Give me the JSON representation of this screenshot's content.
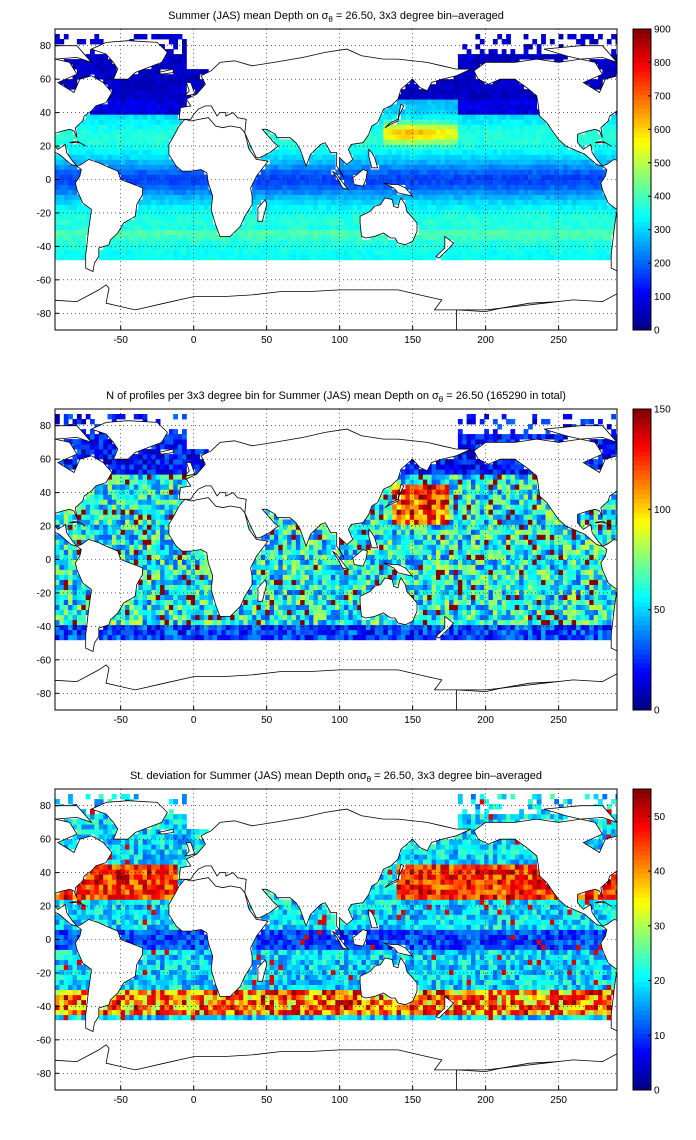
{
  "chart_data": [
    {
      "type": "heatmap",
      "title": "Summer (JAS) mean Depth on σθ = 26.50, 3x3 degree bin–averaged",
      "title_parts": {
        "before": "Summer (JAS) mean Depth on ",
        "sym": "σ",
        "sub": "θ",
        "after": " = 26.50, 3x3 degree bin–averaged"
      },
      "xlabel": "",
      "ylabel": "",
      "xlim": [
        -95,
        290
      ],
      "ylim": [
        -90,
        90
      ],
      "xticks": [
        -50,
        0,
        50,
        100,
        150,
        200,
        250
      ],
      "yticks": [
        -80,
        -60,
        -40,
        -20,
        0,
        20,
        40,
        60,
        80
      ],
      "grid": true,
      "colorbar": {
        "min": 0,
        "max": 900,
        "ticks": [
          0,
          100,
          200,
          300,
          400,
          500,
          600,
          700,
          800,
          900
        ],
        "colormap": "jet"
      },
      "field": "depth",
      "description_values": {
        "subpolar_north_atlantic": 50,
        "subtropical_gyres": 400,
        "kuroshio_extension_max": 620,
        "southern_band": 330
      }
    },
    {
      "type": "heatmap",
      "title": "N of profiles per 3x3 degree bin for Summer (JAS) mean Depth on σθ = 26.50 (165290 in total)",
      "title_parts": {
        "before": "N of profiles per 3x3 degree bin for Summer (JAS) mean Depth on ",
        "sym": "σ",
        "sub": "θ",
        "after": " = 26.50 (165290 in total)"
      },
      "xlabel": "",
      "ylabel": "",
      "xlim": [
        -95,
        290
      ],
      "ylim": [
        -90,
        90
      ],
      "xticks": [
        -50,
        0,
        50,
        100,
        150,
        200,
        250
      ],
      "yticks": [
        -80,
        -60,
        -40,
        -20,
        0,
        20,
        40,
        60,
        80
      ],
      "grid": true,
      "colorbar": {
        "min": 0,
        "max": 150,
        "ticks": [
          0,
          50,
          100,
          150
        ],
        "colormap": "jet"
      },
      "field": "count",
      "total_profiles": 165290
    },
    {
      "type": "heatmap",
      "title": "St. deviation for Summer (JAS) mean Depth onσθ = 26.50, 3x3 degree bin–averaged",
      "title_parts": {
        "before": "St. deviation for Summer (JAS) mean Depth on",
        "sym": "σ",
        "sub": "θ",
        "after": " = 26.50, 3x3 degree bin–averaged"
      },
      "xlabel": "",
      "ylabel": "",
      "xlim": [
        -95,
        290
      ],
      "ylim": [
        -90,
        90
      ],
      "xticks": [
        -50,
        0,
        50,
        100,
        150,
        200,
        250
      ],
      "yticks": [
        -80,
        -60,
        -40,
        -20,
        0,
        20,
        40,
        60,
        80
      ],
      "grid": true,
      "colorbar": {
        "min": 0,
        "max": 55,
        "ticks": [
          0,
          10,
          20,
          30,
          40,
          50
        ],
        "colormap": "jet"
      },
      "field": "stdev"
    }
  ]
}
